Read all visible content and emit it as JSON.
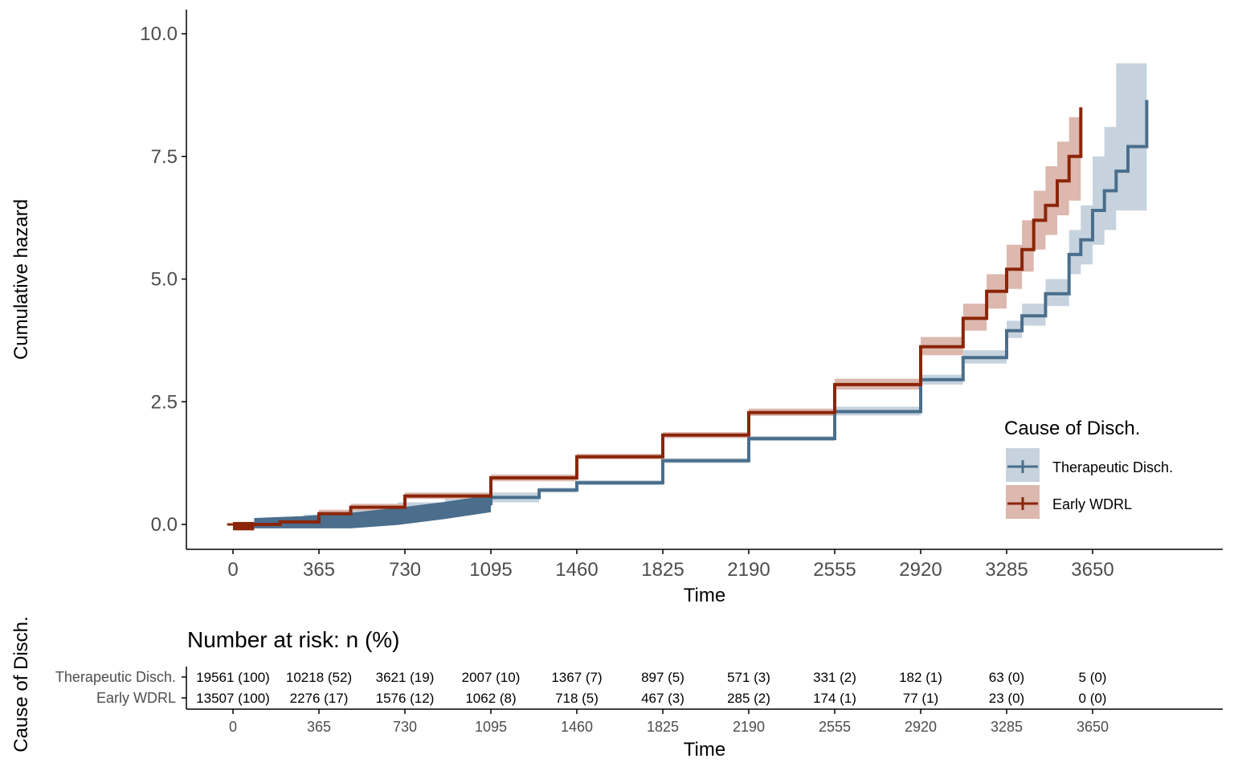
{
  "chart_data": {
    "type": "line",
    "ylabel": "Cumulative hazard",
    "xlabel": "Time",
    "x_ticks": [
      0,
      365,
      730,
      1095,
      1460,
      1825,
      2190,
      2555,
      2920,
      3285,
      3650
    ],
    "y_ticks": [
      "0.0",
      "2.5",
      "5.0",
      "7.5",
      "10.0"
    ],
    "legend": {
      "title": "Cause of Disch.",
      "position": "right",
      "items": [
        "Therapeutic Disch.",
        "Early WDRL"
      ]
    },
    "colors": {
      "therapeutic": "#4a6e8c",
      "early": "#8b2508",
      "therapeutic_band": "#c6d3de",
      "early_band": "#dcb8ae"
    },
    "series": [
      {
        "name": "Therapeutic Disch.",
        "x": [
          0,
          100,
          300,
          500,
          700,
          900,
          1095,
          1300,
          1460,
          1825,
          2190,
          2555,
          2920,
          3100,
          3285,
          3350,
          3450,
          3550,
          3600,
          3650,
          3700,
          3750,
          3800,
          3850,
          3880
        ],
        "y": [
          0,
          0.02,
          0.08,
          0.18,
          0.3,
          0.42,
          0.55,
          0.7,
          0.85,
          1.3,
          1.75,
          2.3,
          2.95,
          3.4,
          3.95,
          4.25,
          4.7,
          5.5,
          5.8,
          6.4,
          6.8,
          7.2,
          7.7,
          7.7,
          8.65
        ],
        "lower": [
          0,
          0.0,
          0.0,
          0.05,
          0.15,
          0.3,
          0.45,
          0.65,
          0.8,
          1.25,
          1.7,
          2.22,
          2.85,
          3.28,
          3.8,
          4.05,
          4.45,
          5.1,
          5.3,
          5.7,
          6.0,
          6.4,
          6.4,
          6.4,
          6.4
        ],
        "upper": [
          0,
          0.1,
          0.2,
          0.35,
          0.45,
          0.55,
          0.65,
          0.75,
          0.9,
          1.35,
          1.8,
          2.4,
          3.05,
          3.55,
          4.15,
          4.5,
          5.0,
          6.0,
          6.5,
          7.5,
          8.1,
          9.4,
          9.4,
          9.4,
          9.4
        ]
      },
      {
        "name": "Early WDRL",
        "x": [
          0,
          100,
          200,
          365,
          500,
          730,
          1095,
          1460,
          1825,
          2190,
          2555,
          2920,
          3100,
          3200,
          3285,
          3350,
          3400,
          3450,
          3500,
          3550,
          3600
        ],
        "y": [
          0,
          0,
          0.05,
          0.22,
          0.35,
          0.58,
          0.95,
          1.38,
          1.82,
          2.28,
          2.85,
          3.62,
          4.2,
          4.75,
          5.2,
          5.6,
          6.2,
          6.5,
          7.0,
          7.5,
          8.5
        ],
        "lower": [
          0,
          0,
          0.0,
          0.15,
          0.28,
          0.52,
          0.88,
          1.33,
          1.76,
          2.21,
          2.75,
          3.45,
          3.95,
          4.4,
          4.8,
          5.15,
          5.6,
          5.9,
          6.3,
          6.6,
          7.0
        ],
        "upper": [
          0,
          0,
          0.1,
          0.3,
          0.42,
          0.65,
          1.02,
          1.44,
          1.88,
          2.36,
          2.97,
          3.82,
          4.5,
          5.1,
          5.7,
          6.2,
          6.8,
          7.3,
          7.8,
          8.3,
          9.25
        ]
      }
    ],
    "risk_table": {
      "title": "Number at risk: n (%)",
      "ylabel": "Cause of Disch.",
      "xlabel": "Time",
      "rows": [
        {
          "label": "Therapeutic Disch.",
          "values": [
            "19561 (100)",
            "10218 (52)",
            "3621 (19)",
            "2007 (10)",
            "1367 (7)",
            "897 (5)",
            "571 (3)",
            "331 (2)",
            "182 (1)",
            "63 (0)",
            "5 (0)"
          ]
        },
        {
          "label": "Early WDRL",
          "values": [
            "13507 (100)",
            "2276 (17)",
            "1576 (12)",
            "1062 (8)",
            "718 (5)",
            "467 (3)",
            "285 (2)",
            "174 (1)",
            "77 (1)",
            "23 (0)",
            "0 (0)"
          ]
        }
      ]
    }
  }
}
